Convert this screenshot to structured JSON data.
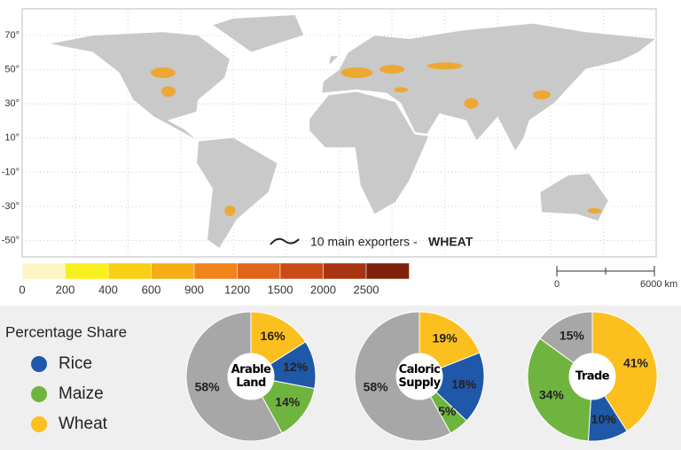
{
  "map": {
    "lat_labels": [
      "70°",
      "50°",
      "30°",
      "10°",
      "-10°",
      "-30°",
      "-50°"
    ],
    "exporters_label": "10 main exporters -",
    "exporters_crop": "WHEAT",
    "colorbar": {
      "ticks": [
        0,
        200,
        400,
        600,
        900,
        1200,
        1500,
        2000,
        2500
      ],
      "colors": [
        "#fdf5c6",
        "#f7f01e",
        "#f9cf14",
        "#f6ac14",
        "#ef8419",
        "#e0641a",
        "#c94b17",
        "#a83512",
        "#7e210c"
      ]
    },
    "scale_bar": {
      "start": "0",
      "end": "6000 km"
    }
  },
  "legend": {
    "title": "Percentage Share",
    "items": [
      "Rice",
      "Maize",
      "Wheat"
    ],
    "colors": [
      "#1f58a8",
      "#6fb43f",
      "#fbbf1e"
    ]
  },
  "chart_data": [
    {
      "type": "pie",
      "center_label": "Arable Land",
      "values": [
        16,
        12,
        14,
        58
      ],
      "value_labels": [
        "16%",
        "12%",
        "14%",
        "58%"
      ],
      "colors": [
        "#fbbf1e",
        "#1f58a8",
        "#6fb43f",
        "#a7a7a7"
      ]
    },
    {
      "type": "pie",
      "center_label": "Caloric Supply",
      "values": [
        19,
        18,
        5,
        58
      ],
      "value_labels": [
        "19%",
        "18%",
        "5%",
        "58%"
      ],
      "colors": [
        "#fbbf1e",
        "#1f58a8",
        "#6fb43f",
        "#a7a7a7"
      ]
    },
    {
      "type": "pie",
      "center_label": "Trade",
      "values": [
        41,
        10,
        34,
        15
      ],
      "value_labels": [
        "41%",
        "10%",
        "34%",
        "15%"
      ],
      "colors": [
        "#fbbf1e",
        "#1f58a8",
        "#6fb43f",
        "#a7a7a7"
      ]
    }
  ]
}
